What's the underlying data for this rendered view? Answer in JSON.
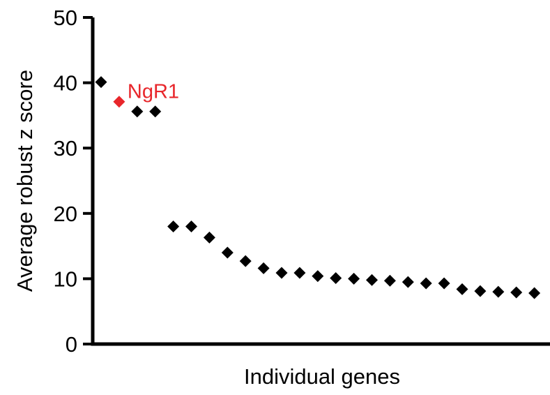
{
  "chart_data": {
    "type": "scatter",
    "marker": "diamond",
    "xlabel": "Individual genes",
    "ylabel": "Average robust z score",
    "ylim": [
      0,
      50
    ],
    "yticks": [
      0,
      10,
      20,
      30,
      40,
      50
    ],
    "x_tick_labels": false,
    "grid": false,
    "default_color": "#000000",
    "highlight_color": "#e8262b",
    "points": [
      {
        "x": 1,
        "y": 40.1
      },
      {
        "x": 2,
        "y": 37.1,
        "label": "NgR1",
        "highlight": true
      },
      {
        "x": 3,
        "y": 35.6
      },
      {
        "x": 4,
        "y": 35.6
      },
      {
        "x": 5,
        "y": 18.0
      },
      {
        "x": 6,
        "y": 18.0
      },
      {
        "x": 7,
        "y": 16.3
      },
      {
        "x": 8,
        "y": 14.0
      },
      {
        "x": 9,
        "y": 12.7
      },
      {
        "x": 10,
        "y": 11.6
      },
      {
        "x": 11,
        "y": 10.9
      },
      {
        "x": 12,
        "y": 10.9
      },
      {
        "x": 13,
        "y": 10.4
      },
      {
        "x": 14,
        "y": 10.1
      },
      {
        "x": 15,
        "y": 10.0
      },
      {
        "x": 16,
        "y": 9.8
      },
      {
        "x": 17,
        "y": 9.7
      },
      {
        "x": 18,
        "y": 9.5
      },
      {
        "x": 19,
        "y": 9.3
      },
      {
        "x": 20,
        "y": 9.3
      },
      {
        "x": 21,
        "y": 8.4
      },
      {
        "x": 22,
        "y": 8.1
      },
      {
        "x": 23,
        "y": 8.0
      },
      {
        "x": 24,
        "y": 7.9
      },
      {
        "x": 25,
        "y": 7.8
      }
    ]
  }
}
